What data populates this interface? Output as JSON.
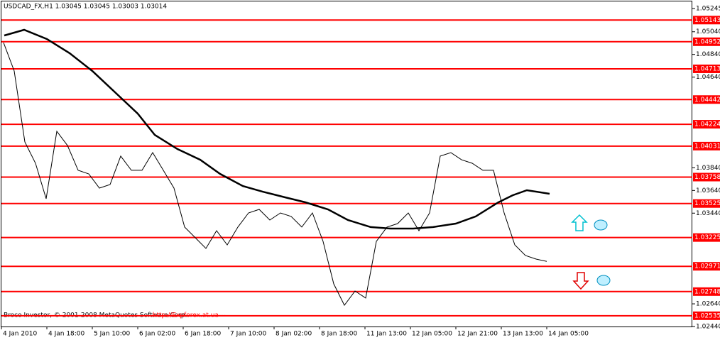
{
  "chart_data": {
    "type": "line",
    "title": "USDCAD_FX,H1 1.03045 1.03045 1.03003 1.03014",
    "footer": "Broco Investor, © 2001-2008 MetaQuotes Software Corp.",
    "watermark": "---http://Expforex.at.ua---",
    "ylim": [
      1.0244,
      1.05245
    ],
    "yticks": [
      1.05245,
      {
        "value": 1.0504,
        "label": "1.05040"
      },
      {
        "value": 1.0484,
        "label": "1.04840"
      },
      {
        "value": 1.0464,
        "label": "1.04640"
      },
      {
        "value": 1.0384,
        "label": "1.03840"
      },
      {
        "value": 1.0364,
        "label": "1.03640"
      },
      {
        "value": 1.0344,
        "label": "1.03440"
      },
      {
        "value": 1.0264,
        "label": "1.02640"
      },
      {
        "value": 1.0244,
        "label": "1.02440"
      }
    ],
    "xlim": [
      0,
      243.25
    ],
    "xticks": [
      {
        "value": 0,
        "label": "4 Jan 2010"
      },
      {
        "value": 16,
        "label": "4 Jan 18:00"
      },
      {
        "value": 32,
        "label": "5 Jan 10:00"
      },
      {
        "value": 48,
        "label": "6 Jan 02:00"
      },
      {
        "value": 64,
        "label": "6 Jan 18:00"
      },
      {
        "value": 80,
        "label": "7 Jan 10:00"
      },
      {
        "value": 96,
        "label": "8 Jan 02:00"
      },
      {
        "value": 112,
        "label": "8 Jan 18:00"
      },
      {
        "value": 128,
        "label": "11 Jan 13:00"
      },
      {
        "value": 144,
        "label": "12 Jan 05:00"
      },
      {
        "value": 160,
        "label": "12 Jan 21:00"
      },
      {
        "value": 176,
        "label": "13 Jan 13:00"
      },
      {
        "value": 192,
        "label": "14 Jan 05:00"
      }
    ],
    "levels": [
      1.05143,
      1.04952,
      1.04713,
      1.04442,
      1.04224,
      1.04031,
      1.03758,
      1.03525,
      1.03225,
      1.02971,
      1.02748,
      1.02535
    ],
    "level_color": "#ff0000",
    "series": [
      {
        "color": "#000000",
        "width": 1,
        "x": [
          0.75,
          4.5,
          8.25,
          12,
          15.75,
          19.5,
          23.25,
          27,
          30.75,
          34.5,
          38.25,
          42,
          45.75,
          49.5,
          53.25,
          57,
          60.75,
          64.5,
          68.25,
          72,
          75.75,
          79.5,
          83.25,
          87,
          90.75,
          94.5,
          98.25,
          102,
          105.75,
          109.5,
          113.25,
          117,
          120.75,
          124.5,
          128.25,
          132,
          135.75,
          139.5,
          143.25,
          147,
          150.75,
          154.5,
          158.25,
          162,
          165.75,
          169.5,
          173.25,
          177,
          180.75,
          184.5,
          188.25,
          192
        ],
        "values": [
          1.04944,
          1.04694,
          1.04068,
          1.0388,
          1.03567,
          1.04162,
          1.04037,
          1.03818,
          1.03786,
          1.03661,
          1.03692,
          1.03943,
          1.03818,
          1.03818,
          1.03974,
          1.03818,
          1.03661,
          1.03317,
          1.03223,
          1.03129,
          1.03285,
          1.0316,
          1.03317,
          1.03442,
          1.03473,
          1.03379,
          1.03442,
          1.03411,
          1.03317,
          1.03442,
          1.03191,
          1.02816,
          1.02628,
          1.02753,
          1.02691,
          1.03191,
          1.03317,
          1.03348,
          1.03442,
          1.03285,
          1.03442,
          1.03943,
          1.03974,
          1.03911,
          1.0388,
          1.03818,
          1.03818,
          1.03442,
          1.0316,
          1.03066,
          1.03035,
          1.03014
        ]
      },
      {
        "color": "#000000",
        "width": 2.5,
        "x": [
          1,
          8,
          16,
          24,
          32,
          40,
          48,
          54,
          62,
          70,
          77,
          85,
          92,
          100,
          107,
          115,
          122,
          130,
          137,
          145,
          152,
          160,
          167,
          175,
          180,
          185,
          193
        ],
        "values": [
          1.05007,
          1.05057,
          1.04976,
          1.04851,
          1.04694,
          1.04506,
          1.04318,
          1.0413,
          1.04005,
          1.03911,
          1.03786,
          1.03679,
          1.03629,
          1.03579,
          1.03536,
          1.03473,
          1.03379,
          1.03317,
          1.03304,
          1.03304,
          1.03317,
          1.03348,
          1.03411,
          1.03536,
          1.03598,
          1.03642,
          1.03611
        ]
      }
    ]
  }
}
